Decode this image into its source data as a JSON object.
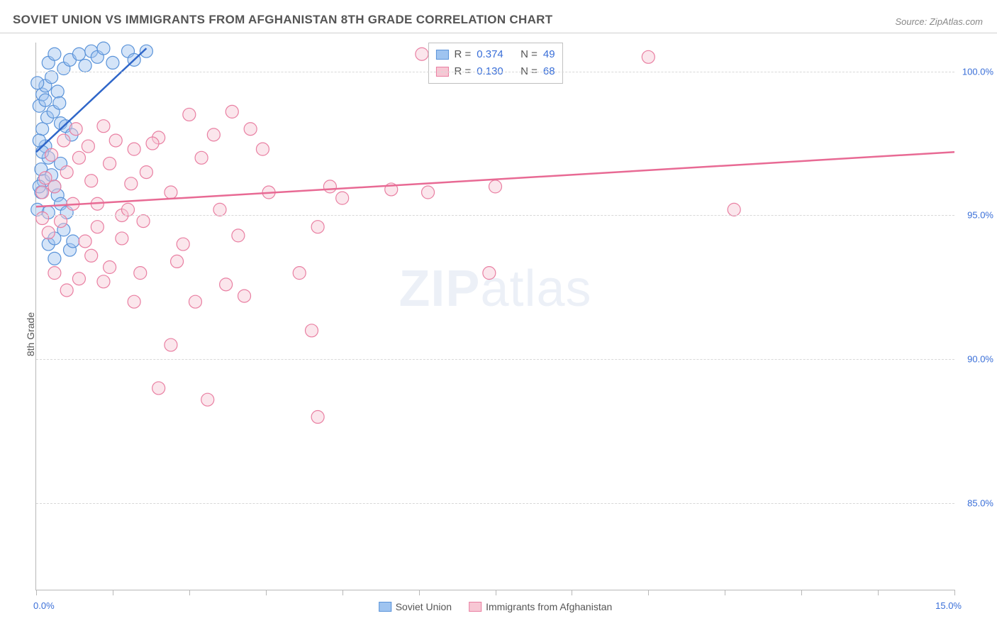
{
  "header": {
    "title": "SOVIET UNION VS IMMIGRANTS FROM AFGHANISTAN 8TH GRADE CORRELATION CHART",
    "source": "Source: ZipAtlas.com"
  },
  "ylabel": "8th Grade",
  "watermark": {
    "bold": "ZIP",
    "light": "atlas"
  },
  "chart": {
    "type": "scatter",
    "xlim": [
      0.0,
      15.0
    ],
    "ylim": [
      82.0,
      101.0
    ],
    "x_ticks": [
      0.0,
      1.25,
      2.5,
      3.75,
      5.0,
      6.25,
      7.5,
      8.75,
      10.0,
      11.25,
      12.5,
      13.75,
      15.0
    ],
    "y_gridlines": [
      85.0,
      90.0,
      95.0,
      100.0
    ],
    "y_tick_labels": [
      "85.0%",
      "90.0%",
      "95.0%",
      "100.0%"
    ],
    "x_start_label": "0.0%",
    "x_end_label": "15.0%",
    "background_color": "#ffffff",
    "grid_color": "#d8d8d8",
    "axis_color": "#b8b8b8",
    "tick_label_color": "#3a6fd8",
    "marker_radius": 9,
    "marker_opacity": 0.45,
    "series": [
      {
        "id": "soviet",
        "label": "Soviet Union",
        "fill": "#9fc4f0",
        "stroke": "#5a93d9",
        "line_color": "#2f66c9",
        "R": "0.374",
        "N": "49",
        "trend": {
          "x1": 0.0,
          "y1": 97.2,
          "x2": 1.8,
          "y2": 100.8
        },
        "points": [
          [
            0.05,
            98.8
          ],
          [
            0.1,
            99.2
          ],
          [
            0.15,
            99.5
          ],
          [
            0.2,
            100.3
          ],
          [
            0.25,
            99.8
          ],
          [
            0.3,
            100.6
          ],
          [
            0.35,
            99.3
          ],
          [
            0.4,
            98.2
          ],
          [
            0.1,
            98.0
          ],
          [
            0.15,
            97.4
          ],
          [
            0.2,
            97.0
          ],
          [
            0.08,
            96.6
          ],
          [
            0.12,
            96.2
          ],
          [
            0.25,
            96.4
          ],
          [
            0.3,
            96.0
          ],
          [
            0.35,
            95.7
          ],
          [
            0.4,
            95.4
          ],
          [
            0.5,
            95.1
          ],
          [
            0.2,
            94.0
          ],
          [
            0.3,
            94.2
          ],
          [
            0.45,
            94.5
          ],
          [
            0.55,
            93.8
          ],
          [
            0.6,
            94.1
          ],
          [
            0.15,
            99.0
          ],
          [
            0.45,
            100.1
          ],
          [
            0.55,
            100.4
          ],
          [
            0.7,
            100.6
          ],
          [
            0.8,
            100.2
          ],
          [
            0.9,
            100.7
          ],
          [
            1.0,
            100.5
          ],
          [
            1.1,
            100.8
          ],
          [
            1.25,
            100.3
          ],
          [
            1.5,
            100.7
          ],
          [
            1.6,
            100.4
          ],
          [
            1.8,
            100.7
          ],
          [
            0.05,
            97.6
          ],
          [
            0.1,
            97.2
          ],
          [
            0.18,
            98.4
          ],
          [
            0.28,
            98.6
          ],
          [
            0.38,
            98.9
          ],
          [
            0.48,
            98.1
          ],
          [
            0.58,
            97.8
          ],
          [
            0.08,
            95.8
          ],
          [
            0.02,
            95.2
          ],
          [
            0.02,
            99.6
          ],
          [
            0.2,
            95.1
          ],
          [
            0.3,
            93.5
          ],
          [
            0.05,
            96.0
          ],
          [
            0.4,
            96.8
          ]
        ]
      },
      {
        "id": "afghan",
        "label": "Immigrants from Afghanistan",
        "fill": "#f7c7d4",
        "stroke": "#e97fa2",
        "line_color": "#e86a94",
        "R": "0.130",
        "N": "68",
        "trend": {
          "x1": 0.0,
          "y1": 95.3,
          "x2": 15.0,
          "y2": 97.2
        },
        "points": [
          [
            0.1,
            95.8
          ],
          [
            0.3,
            96.0
          ],
          [
            0.5,
            96.5
          ],
          [
            0.7,
            97.0
          ],
          [
            0.9,
            96.2
          ],
          [
            1.0,
            95.4
          ],
          [
            1.2,
            96.8
          ],
          [
            1.4,
            95.0
          ],
          [
            0.2,
            94.4
          ],
          [
            0.4,
            94.8
          ],
          [
            0.6,
            95.4
          ],
          [
            0.8,
            94.1
          ],
          [
            1.0,
            94.6
          ],
          [
            1.2,
            93.2
          ],
          [
            1.4,
            94.2
          ],
          [
            1.6,
            97.3
          ],
          [
            1.8,
            96.5
          ],
          [
            2.0,
            97.7
          ],
          [
            2.2,
            95.8
          ],
          [
            2.4,
            94.0
          ],
          [
            2.5,
            98.5
          ],
          [
            2.7,
            97.0
          ],
          [
            2.9,
            97.8
          ],
          [
            3.0,
            95.2
          ],
          [
            3.2,
            98.6
          ],
          [
            3.3,
            94.3
          ],
          [
            3.4,
            92.2
          ],
          [
            3.5,
            98.0
          ],
          [
            3.7,
            97.3
          ],
          [
            3.8,
            95.8
          ],
          [
            4.3,
            93.0
          ],
          [
            4.5,
            91.0
          ],
          [
            4.6,
            94.6
          ],
          [
            4.6,
            88.0
          ],
          [
            4.8,
            96.0
          ],
          [
            5.0,
            95.6
          ],
          [
            5.8,
            95.9
          ],
          [
            6.3,
            100.6
          ],
          [
            6.4,
            95.8
          ],
          [
            7.4,
            93.0
          ],
          [
            7.5,
            96.0
          ],
          [
            10.0,
            100.5
          ],
          [
            11.4,
            95.2
          ],
          [
            2.0,
            89.0
          ],
          [
            2.8,
            88.6
          ],
          [
            1.7,
            93.0
          ],
          [
            1.6,
            92.0
          ],
          [
            1.5,
            95.2
          ],
          [
            0.3,
            93.0
          ],
          [
            0.5,
            92.4
          ],
          [
            0.7,
            92.8
          ],
          [
            2.3,
            93.4
          ],
          [
            2.6,
            92.0
          ],
          [
            3.1,
            92.6
          ],
          [
            0.15,
            96.3
          ],
          [
            0.25,
            97.1
          ],
          [
            0.45,
            97.6
          ],
          [
            0.65,
            98.0
          ],
          [
            0.85,
            97.4
          ],
          [
            1.1,
            98.1
          ],
          [
            1.3,
            97.6
          ],
          [
            1.55,
            96.1
          ],
          [
            1.75,
            94.8
          ],
          [
            0.1,
            94.9
          ],
          [
            0.9,
            93.6
          ],
          [
            1.1,
            92.7
          ],
          [
            2.2,
            90.5
          ],
          [
            1.9,
            97.5
          ]
        ]
      }
    ]
  },
  "stats_box": {
    "R_label": "R =",
    "N_label": "N ="
  },
  "bottom_legend": {
    "series1": "Soviet Union",
    "series2": "Immigrants from Afghanistan"
  }
}
